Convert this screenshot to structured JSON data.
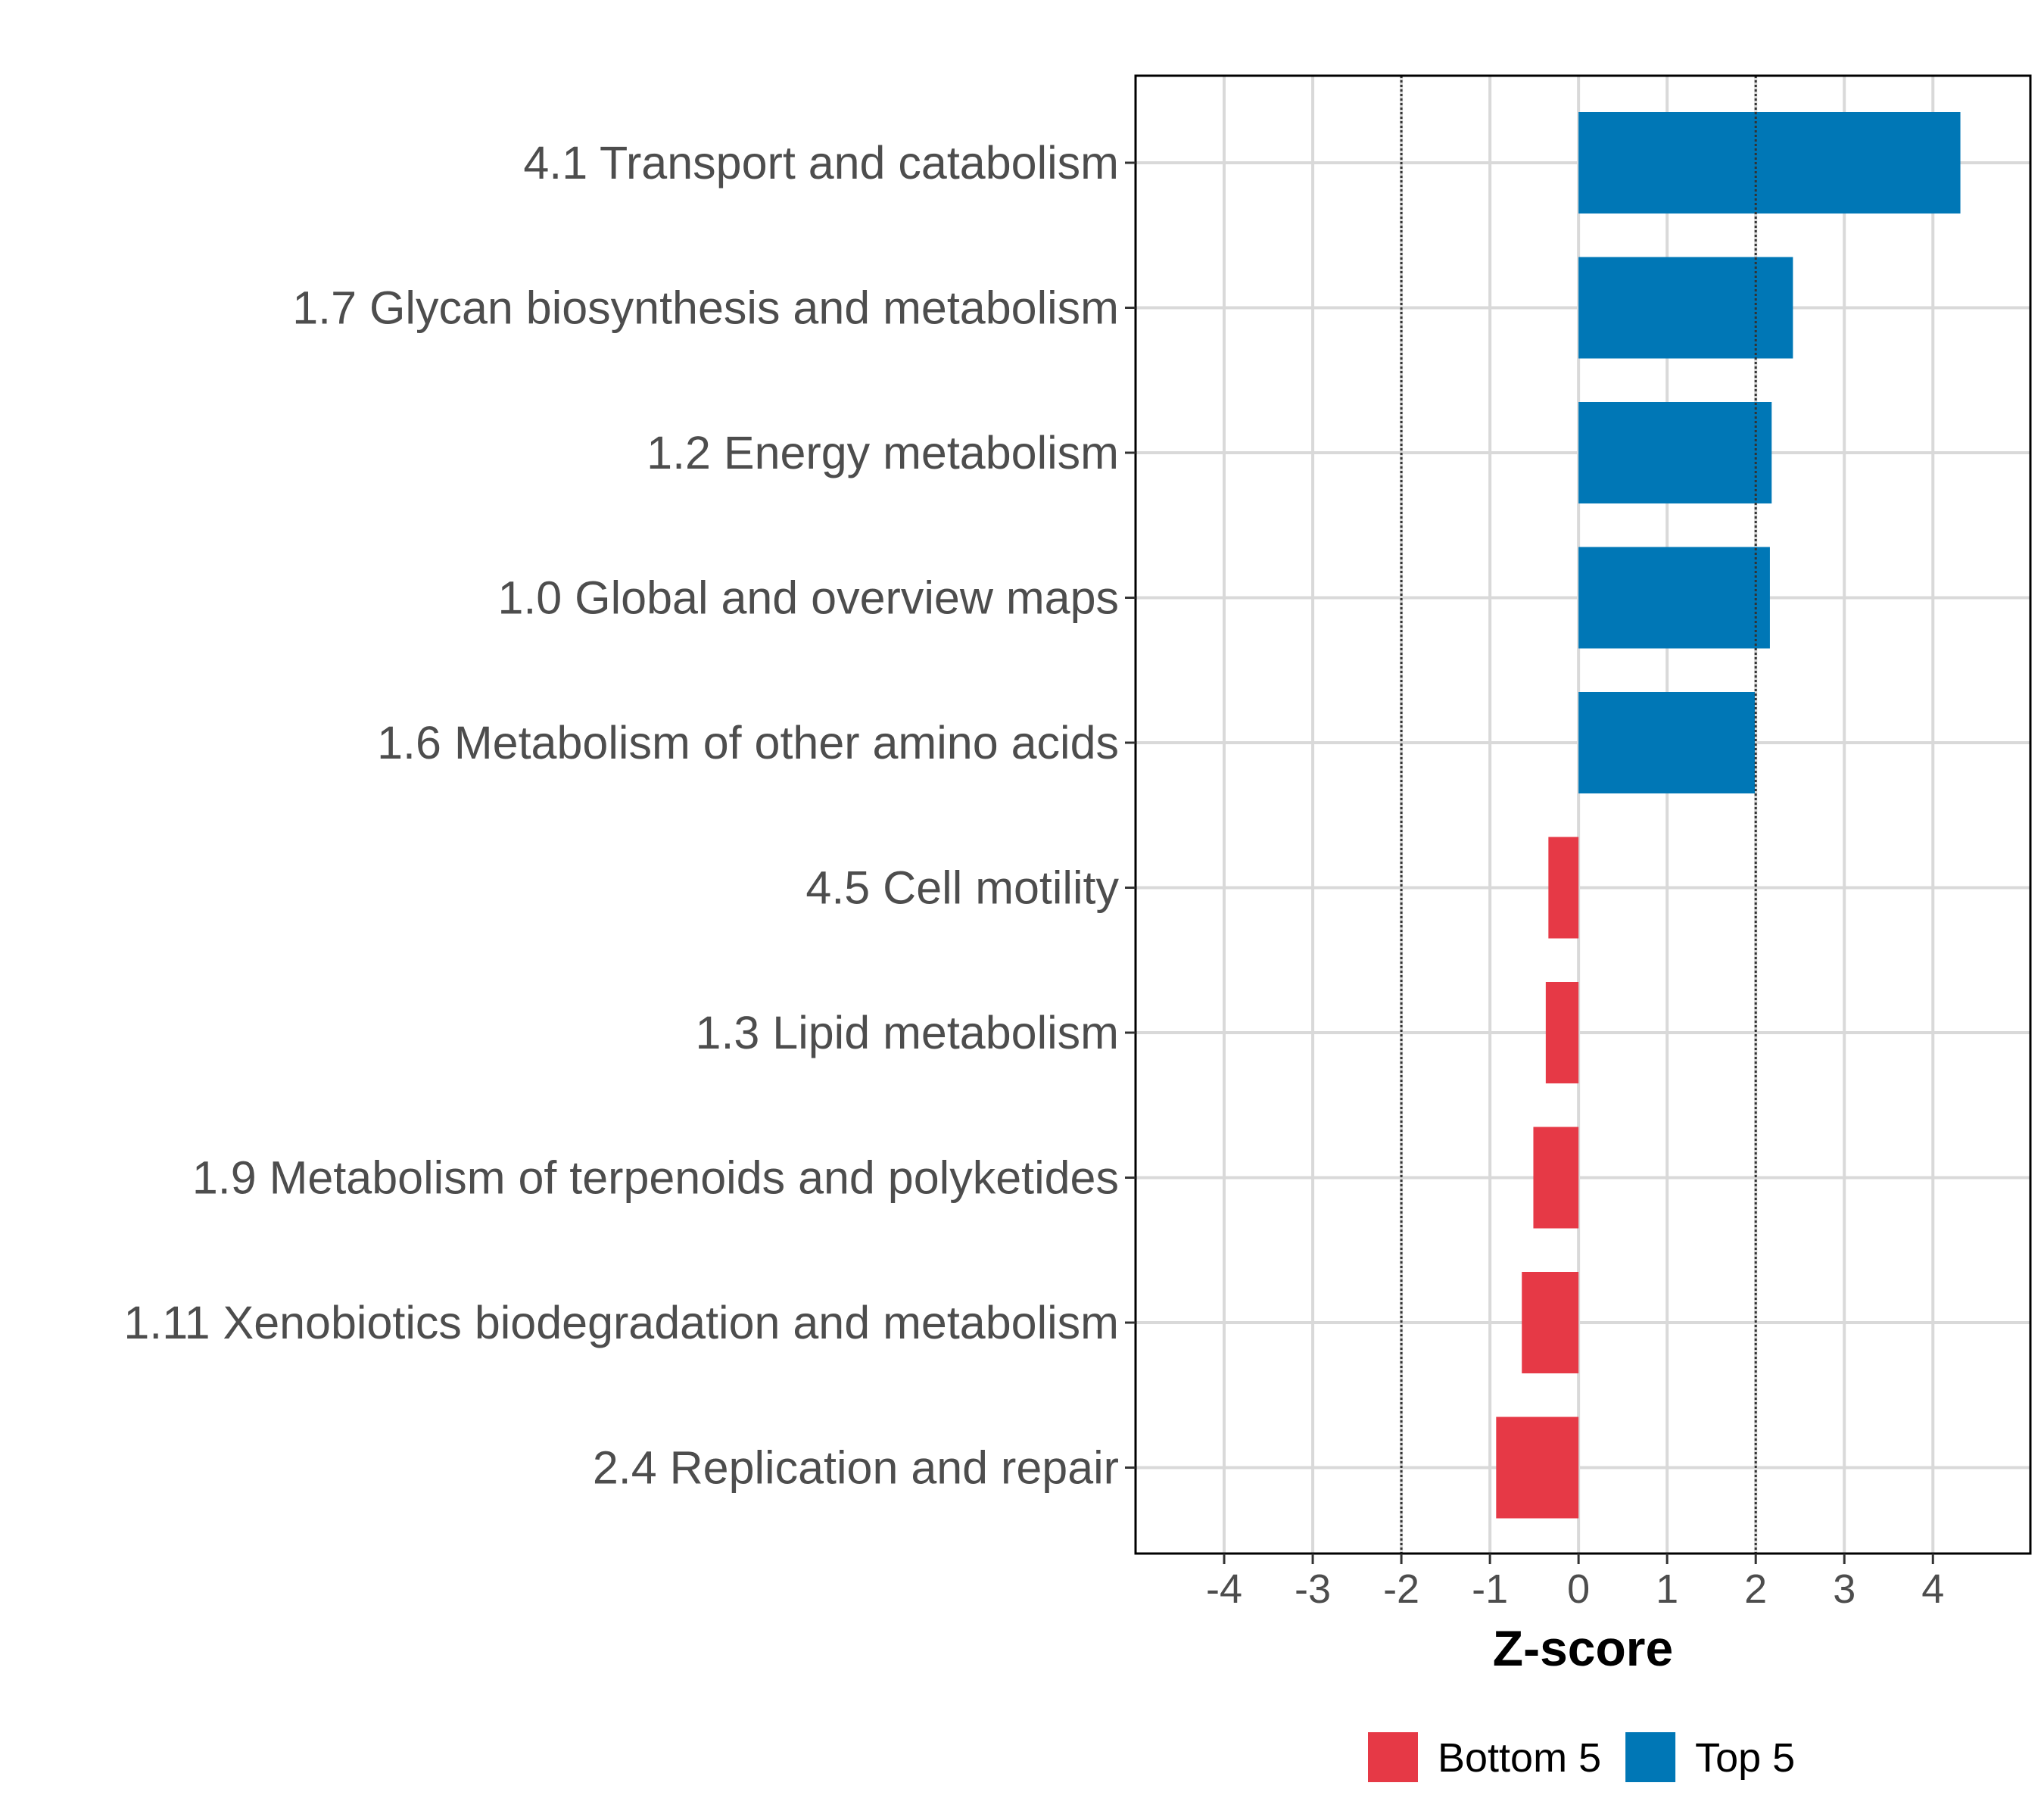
{
  "chart_data": {
    "type": "bar",
    "orientation": "horizontal",
    "title": "",
    "xlabel": "Z-score",
    "ylabel": "",
    "xlim": [
      -5,
      5.1
    ],
    "xticks": [
      -4,
      -3,
      -2,
      -1,
      0,
      1,
      2,
      3,
      4
    ],
    "xtick_labels": [
      "-4",
      "-3",
      "-2",
      "-1",
      "0",
      "1",
      "2",
      "3",
      "4"
    ],
    "grid": true,
    "reference_lines": [
      -2,
      2
    ],
    "categories": [
      "4.1 Transport and catabolism",
      "1.7 Glycan biosynthesis and metabolism",
      "1.2 Energy metabolism",
      "1.0 Global and overview maps",
      "1.6 Metabolism of other amino acids",
      "4.5 Cell motility",
      "1.3 Lipid metabolism",
      "1.9 Metabolism of terpenoids and polyketides",
      "1.11 Xenobiotics biodegradation and metabolism",
      "2.4 Replication and repair"
    ],
    "values": [
      4.31,
      2.42,
      2.18,
      2.16,
      1.99,
      -0.34,
      -0.37,
      -0.51,
      -0.64,
      -0.93
    ],
    "groups": [
      "Top 5",
      "Top 5",
      "Top 5",
      "Top 5",
      "Top 5",
      "Bottom 5",
      "Bottom 5",
      "Bottom 5",
      "Bottom 5",
      "Bottom 5"
    ],
    "legend": {
      "position": "bottom",
      "entries": [
        {
          "name": "Bottom 5",
          "color": "#E63946"
        },
        {
          "name": "Top 5",
          "color": "#0077B6"
        }
      ]
    }
  }
}
